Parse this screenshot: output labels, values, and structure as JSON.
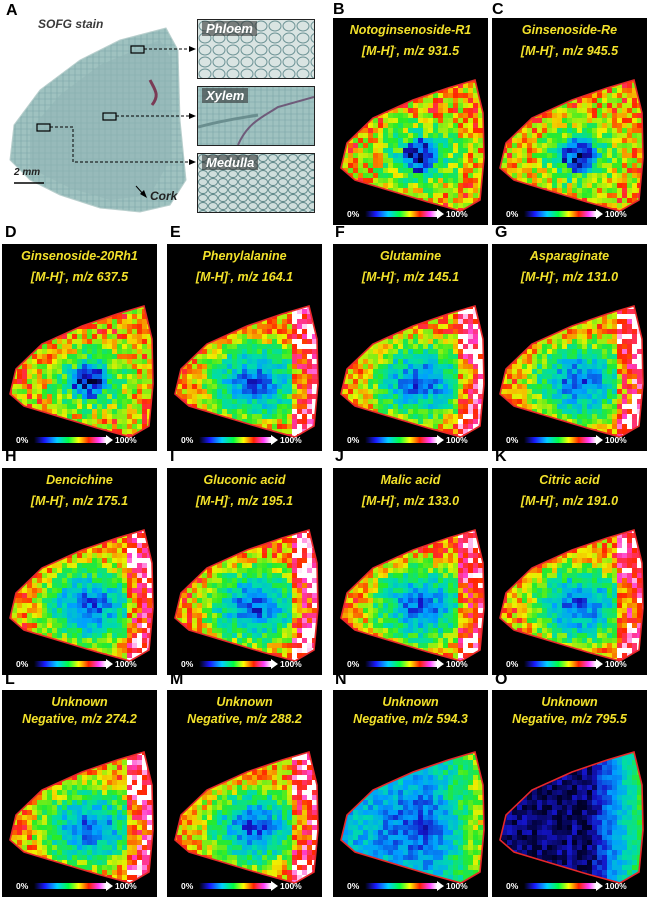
{
  "panel_a": {
    "label": "A",
    "title": "SOFG stain",
    "scale_bar": "2 mm",
    "cork_label": "Cork",
    "insets": [
      "Phloem",
      "Xylem",
      "Medulla"
    ]
  },
  "colorbar": {
    "min_label": "0%",
    "max_label": "100%"
  },
  "panels": [
    {
      "label": "B",
      "line1": "Notoginsenoside-R1",
      "ion": "[M-H]",
      "sup": "-",
      "mz": ", m/z 931.5",
      "pattern": "outer"
    },
    {
      "label": "C",
      "line1": "Ginsenoside-Re",
      "ion": "[M-H]",
      "sup": "-",
      "mz": ", m/z 945.5",
      "pattern": "outer"
    },
    {
      "label": "D",
      "line1": "Ginsenoside-20Rh1",
      "ion": "[M-H]",
      "sup": "-",
      "mz": ", m/z 637.5",
      "pattern": "outer"
    },
    {
      "label": "E",
      "line1": "Phenylalanine",
      "ion": "[M-H]",
      "sup": "-",
      "mz": ", m/z 164.1",
      "pattern": "ring"
    },
    {
      "label": "F",
      "line1": "Glutamine",
      "ion": "[M-H]",
      "sup": "-",
      "mz": ", m/z 145.1",
      "pattern": "ring"
    },
    {
      "label": "G",
      "line1": "Asparaginate",
      "ion": "[M-H]",
      "sup": "-",
      "mz": ", m/z 131.0",
      "pattern": "ring"
    },
    {
      "label": "H",
      "line1": "Dencichine",
      "ion": "[M-H]",
      "sup": "-",
      "mz": ", m/z 175.1",
      "pattern": "ring"
    },
    {
      "label": "I",
      "line1": "Gluconic acid",
      "ion": "[M-H]",
      "sup": "-",
      "mz": ", m/z 195.1",
      "pattern": "ring"
    },
    {
      "label": "J",
      "line1": "Malic acid",
      "ion": "[M-H]",
      "sup": "-",
      "mz": ", m/z 133.0",
      "pattern": "ring"
    },
    {
      "label": "K",
      "line1": "Citric acid",
      "ion": "[M-H]",
      "sup": "-",
      "mz": ", m/z 191.0",
      "pattern": "ring"
    },
    {
      "label": "L",
      "line1": "Unknown",
      "line2": "Negative, m/z 274.2",
      "pattern": "ring"
    },
    {
      "label": "M",
      "line1": "Unknown",
      "line2": "Negative, m/z 288.2",
      "pattern": "ring"
    },
    {
      "label": "N",
      "line1": "Unknown",
      "line2": "Negative, m/z 594.3",
      "pattern": "weak"
    },
    {
      "label": "O",
      "line1": "Unknown",
      "line2": "Negative, m/z 795.5",
      "pattern": "edge"
    }
  ]
}
